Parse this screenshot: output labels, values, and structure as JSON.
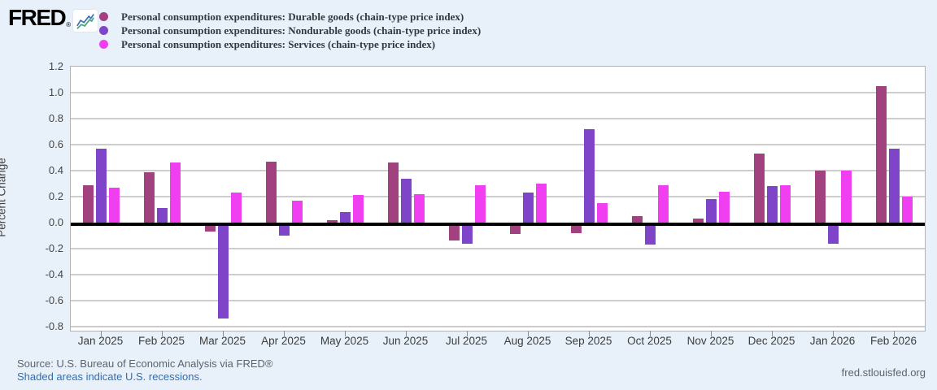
{
  "header": {
    "logo_text": "FRED",
    "logo_reg": "®"
  },
  "chart_data": {
    "type": "bar",
    "title": "",
    "ylabel": "Percent Change",
    "ylim": [
      -0.83,
      1.2
    ],
    "grid": true,
    "legend_position": "top-left",
    "ytick_labels": [
      "1.2",
      "1.0",
      "0.8",
      "0.6",
      "0.4",
      "0.2",
      "0.0",
      "-0.2",
      "-0.4",
      "-0.6",
      "-0.8"
    ],
    "categories": [
      "Jan 2025",
      "Feb 2025",
      "Mar 2025",
      "Apr 2025",
      "May 2025",
      "Jun 2025",
      "Jul 2025",
      "Aug 2025",
      "Sep 2025",
      "Oct 2025",
      "Nov 2025",
      "Dec 2025",
      "Jan 2026",
      "Feb 2026"
    ],
    "series": [
      {
        "key": "durable",
        "name": "Personal consumption expenditures: Durable goods (chain-type price index)",
        "color": "#a1417e",
        "values": [
          0.29,
          0.39,
          -0.07,
          0.47,
          0.02,
          0.46,
          -0.14,
          -0.09,
          -0.08,
          0.05,
          0.03,
          0.53,
          0.4,
          1.05
        ]
      },
      {
        "key": "nondurable",
        "name": "Personal consumption expenditures: Nondurable goods (chain-type price index)",
        "color": "#7f45c8",
        "values": [
          0.57,
          0.11,
          -0.74,
          -0.1,
          0.08,
          0.34,
          -0.16,
          0.23,
          0.72,
          -0.17,
          0.18,
          0.28,
          -0.16,
          0.57
        ]
      },
      {
        "key": "services",
        "name": "Personal consumption expenditures: Services (chain-type price index)",
        "color": "#ef3ff0",
        "values": [
          0.27,
          0.46,
          0.23,
          0.17,
          0.21,
          0.22,
          0.29,
          0.3,
          0.15,
          0.29,
          0.24,
          0.29,
          0.4,
          0.2
        ]
      }
    ]
  },
  "footer": {
    "source": "Source: U.S. Bureau of Economic Analysis via FRED®",
    "recessions_note": "Shaded areas indicate U.S. recessions.",
    "url": "fred.stlouisfed.org"
  }
}
